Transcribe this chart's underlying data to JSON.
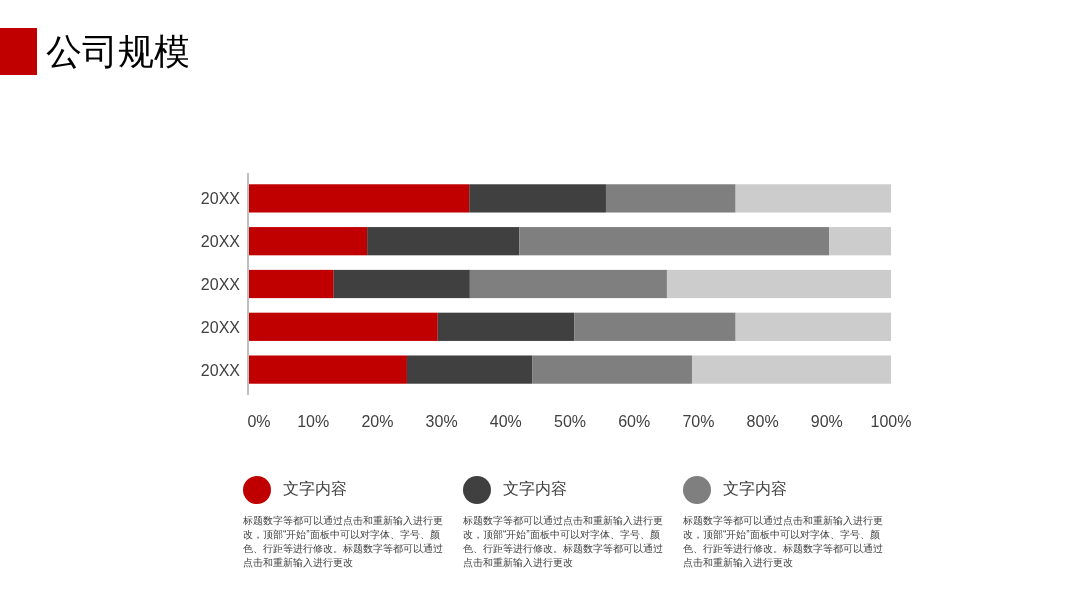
{
  "chart_data": {
    "type": "bar",
    "orientation": "horizontal",
    "stacked": true,
    "title": "公司规模",
    "categories": [
      "20XX",
      "20XX",
      "20XX",
      "20XX",
      "20XX"
    ],
    "series": [
      {
        "name": "文字内容",
        "color": "#c00000",
        "values": [
          34.3,
          18.4,
          13.2,
          29.4,
          24.6
        ]
      },
      {
        "name": "文字内容",
        "color": "#404040",
        "values": [
          21.3,
          23.7,
          21.2,
          21.3,
          19.5
        ]
      },
      {
        "name": "文字内容",
        "color": "#7f7f7f",
        "values": [
          20.2,
          48.3,
          30.7,
          25.1,
          24.9
        ]
      },
      {
        "color": "#cccccc",
        "values": [
          24.2,
          9.6,
          34.9,
          24.2,
          31.0
        ]
      }
    ],
    "xlim": [
      0,
      100
    ],
    "xticks": [
      {
        "value": 0,
        "label": "0%"
      },
      {
        "value": 10,
        "label": "10%"
      },
      {
        "value": 20,
        "label": "20%"
      },
      {
        "value": 30,
        "label": "30%"
      },
      {
        "value": 40,
        "label": "40%"
      },
      {
        "value": 50,
        "label": "50%"
      },
      {
        "value": 60,
        "label": "60%"
      },
      {
        "value": 70,
        "label": "70%"
      },
      {
        "value": 80,
        "label": "80%"
      },
      {
        "value": 90,
        "label": "90%"
      },
      {
        "value": 100,
        "label": "100%"
      }
    ],
    "legend": "bottom",
    "annotations": [
      "标题数字等都可以通过点击和重新输入进行更改，顶部“开始”面板中可以对字体、字号、颜色、行距等进行修改。标题数字等都可以通过点击和重新输入进行更改",
      "标题数字等都可以通过点击和重新输入进行更改，顶部“开始”面板中可以对字体、字号、颜色、行距等进行修改。标题数字等都可以通过点击和重新输入进行更改",
      "标题数字等都可以通过点击和重新输入进行更改，顶部“开始”面板中可以对字体、字号、颜色、行距等进行修改。标题数字等都可以通过点击和重新输入进行更改"
    ]
  }
}
